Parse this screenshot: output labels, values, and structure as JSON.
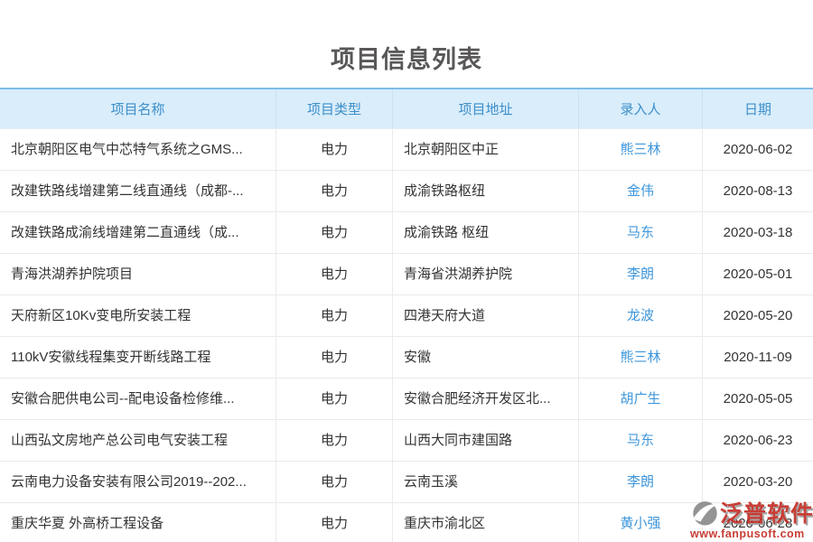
{
  "page": {
    "title": "项目信息列表"
  },
  "table": {
    "columns": [
      {
        "key": "name",
        "label": "项目名称",
        "align": "left"
      },
      {
        "key": "type",
        "label": "项目类型",
        "align": "center"
      },
      {
        "key": "address",
        "label": "项目地址",
        "align": "left"
      },
      {
        "key": "entry_person",
        "label": "录入人",
        "align": "center"
      },
      {
        "key": "date",
        "label": "日期",
        "align": "center"
      }
    ],
    "rows": [
      {
        "name": "北京朝阳区电气中芯特气系统之GMS...",
        "type": "电力",
        "address": "北京朝阳区中正",
        "entry_person": "熊三林",
        "date": "2020-06-02"
      },
      {
        "name": "改建铁路线增建第二线直通线（成都-...",
        "type": "电力",
        "address": "成渝铁路枢纽",
        "entry_person": "金伟",
        "date": "2020-08-13"
      },
      {
        "name": "改建铁路成渝线增建第二直通线（成...",
        "type": "电力",
        "address": "成渝铁路 枢纽",
        "entry_person": "马东",
        "date": "2020-03-18"
      },
      {
        "name": "青海洪湖养护院项目",
        "type": "电力",
        "address": "青海省洪湖养护院",
        "entry_person": "李朗",
        "date": "2020-05-01"
      },
      {
        "name": "天府新区10Kv变电所安装工程",
        "type": "电力",
        "address": "四港天府大道",
        "entry_person": "龙波",
        "date": "2020-05-20"
      },
      {
        "name": "110kV安徽线程集变开断线路工程",
        "type": "电力",
        "address": "安徽",
        "entry_person": "熊三林",
        "date": "2020-11-09"
      },
      {
        "name": "安徽合肥供电公司--配电设备检修维...",
        "type": "电力",
        "address": "安徽合肥经济开发区北...",
        "entry_person": "胡广生",
        "date": "2020-05-05"
      },
      {
        "name": "山西弘文房地产总公司电气安装工程",
        "type": "电力",
        "address": "山西大同市建国路",
        "entry_person": "马东",
        "date": "2020-06-23"
      },
      {
        "name": "云南电力设备安装有限公司2019--202...",
        "type": "电力",
        "address": "云南玉溪",
        "entry_person": "李朗",
        "date": "2020-03-20"
      },
      {
        "name": "重庆华夏 外高桥工程设备",
        "type": "电力",
        "address": "重庆市渝北区",
        "entry_person": "黄小强",
        "date": "2020-06-28"
      }
    ]
  },
  "watermark": {
    "brand": "泛普软件",
    "url": "www.fanpusoft.com"
  },
  "colors": {
    "header_bg": "#d9edfb",
    "header_text": "#3d8fc9",
    "header_top_border": "#7cbde6",
    "row_border": "#eaeaea",
    "link_blue": "#3e96db",
    "body_text": "#333333",
    "title_text": "#595757",
    "brand_red": "#c42e25"
  }
}
